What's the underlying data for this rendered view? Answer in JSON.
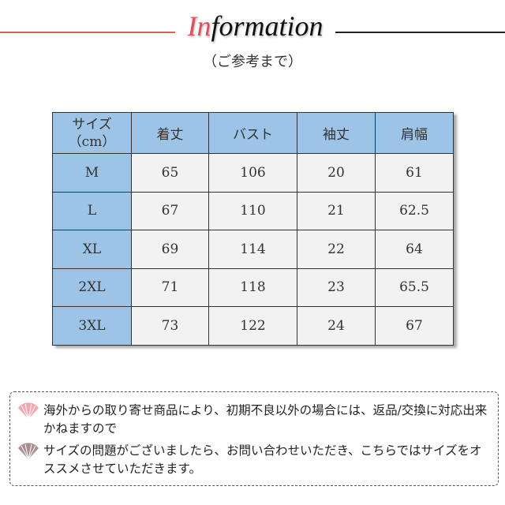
{
  "header": {
    "title_accent": "In",
    "title_rest": "formation",
    "subtitle": "（ご参考まで）",
    "accent_color": "#e0505a"
  },
  "table": {
    "columns": [
      "サイズ（cm）",
      "着丈",
      "バスト",
      "袖丈",
      "肩幅"
    ],
    "header_first_line1": "サイズ",
    "header_first_line2": "（cm）",
    "rows": [
      [
        "M",
        "65",
        "106",
        "20",
        "61"
      ],
      [
        "L",
        "67",
        "110",
        "21",
        "62.5"
      ],
      [
        "XL",
        "69",
        "114",
        "22",
        "64"
      ],
      [
        "2XL",
        "71",
        "118",
        "23",
        "65.5"
      ],
      [
        "3XL",
        "73",
        "122",
        "24",
        "67"
      ]
    ]
  },
  "notes": [
    {
      "icon": "fan-icon-pink",
      "text": "海外からの取り寄せ商品により、初期不良以外の場合には、返品/交換に対応出来かねますので"
    },
    {
      "icon": "fan-icon-mauve",
      "text": "サイズの問題がございましたら、お問い合わせいただき、こちらではサイズをオススメさせていただきます。"
    }
  ]
}
